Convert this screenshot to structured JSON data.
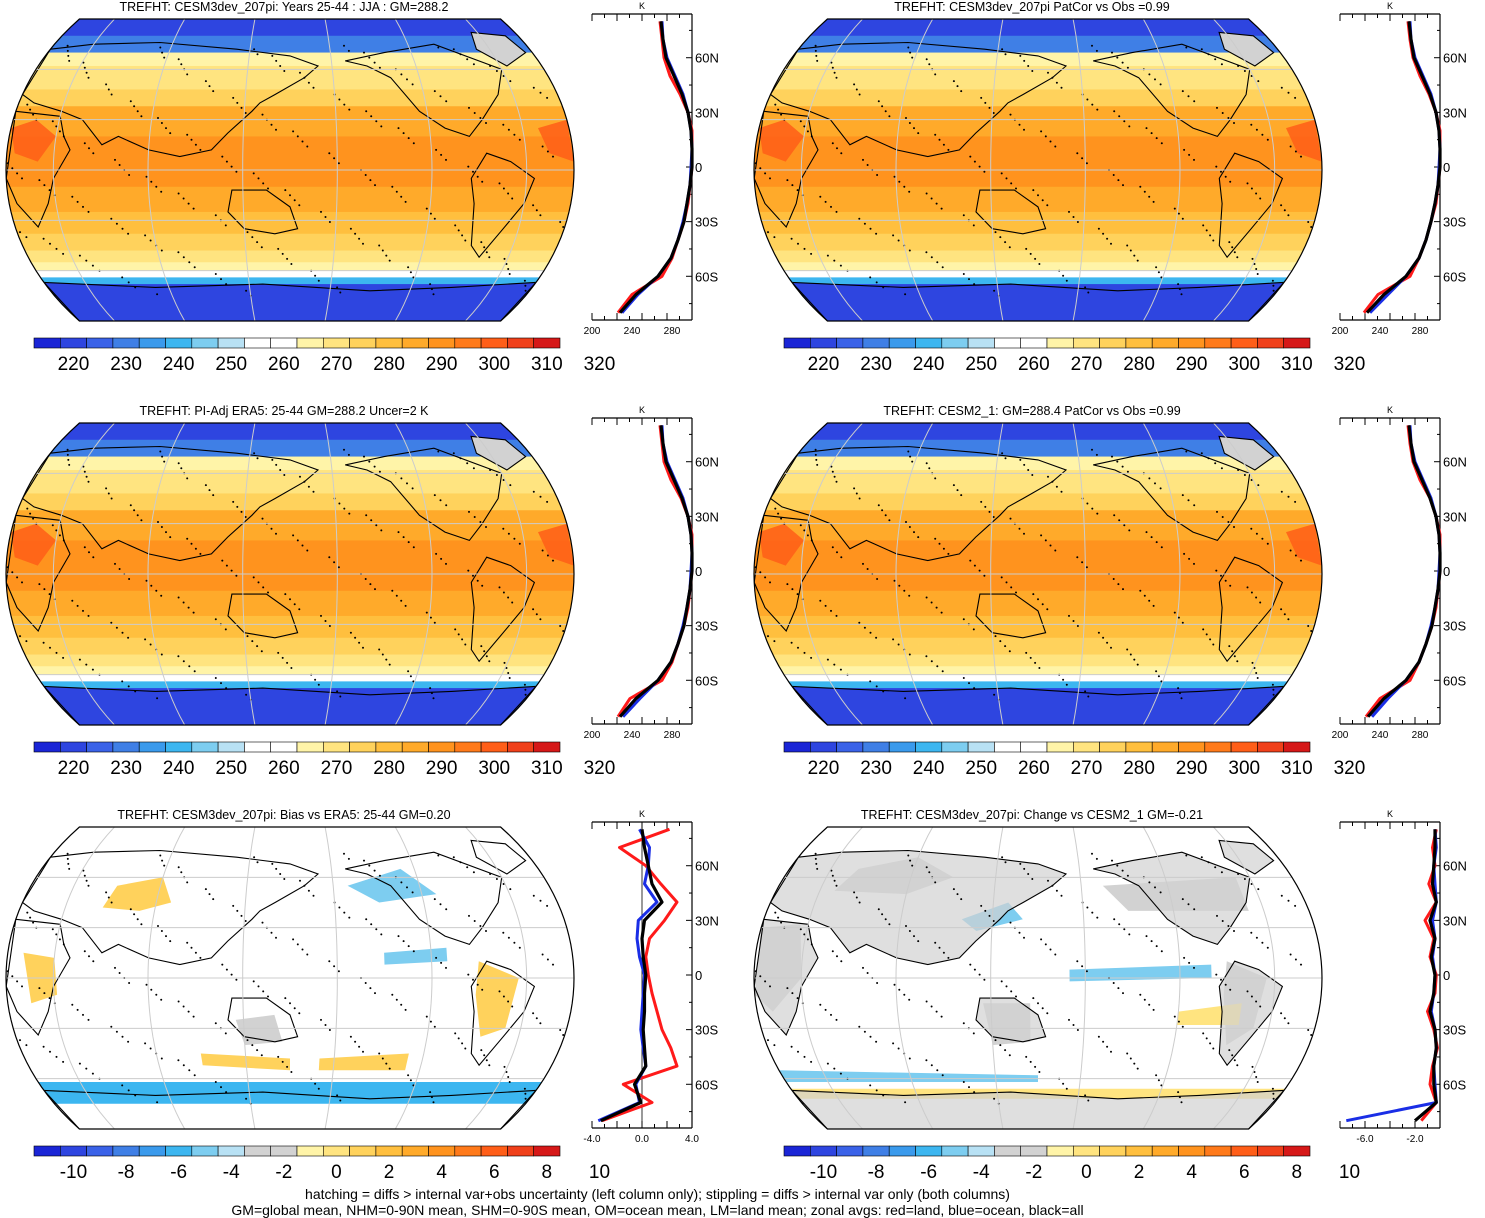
{
  "colors": {
    "abs_levels": [
      "#1a25d6",
      "#2e45e0",
      "#3a62e8",
      "#3f7fe6",
      "#3a9aec",
      "#3cb6f0",
      "#7dcdf0",
      "#b8e1f4",
      "#ffffff",
      "#ffffff",
      "#fff4a8",
      "#ffe480",
      "#ffd25c",
      "#ffbf3e",
      "#ffaa2a",
      "#ff931e",
      "#ff7a1a",
      "#ff5e18",
      "#f0401a",
      "#d61818"
    ],
    "diff_levels": [
      "#1a25d6",
      "#2e45e0",
      "#3a62e8",
      "#3f7fe6",
      "#3a9aec",
      "#3cb6f0",
      "#7dcdf0",
      "#b8e1f4",
      "#d2d2d2",
      "#d2d2d2",
      "#fff4a8",
      "#ffe480",
      "#ffd25c",
      "#ffbf3e",
      "#ffaa2a",
      "#ff931e",
      "#ff7a1a",
      "#ff5e18",
      "#f0401a",
      "#d61818"
    ],
    "land_line": "#ff1a1a",
    "ocean_line": "#1a2ee6",
    "all_line": "#000000",
    "grid": "#cccccc"
  },
  "colorbars": {
    "absolute": {
      "labels": [
        "220",
        "230",
        "240",
        "250",
        "260",
        "270",
        "280",
        "290",
        "300",
        "310",
        "320"
      ]
    },
    "difference": {
      "labels": [
        "-10",
        "-8",
        "-6",
        "-4",
        "-2",
        "0",
        "2",
        "4",
        "6",
        "8",
        "10"
      ]
    }
  },
  "panels": [
    {
      "title": "TREFHT: CESM3dev_207pi: Years 25-44 : JJA : GM=288.2",
      "kind": "absolute",
      "chart_data": {
        "type": "line",
        "title": "K",
        "xlim": [
          200,
          300
        ],
        "xtick_labels": [
          "200",
          "240",
          "280"
        ],
        "ytick_labels": [
          "60N",
          "30N",
          "0",
          "30S",
          "60S"
        ],
        "lat": [
          80,
          70,
          60,
          50,
          40,
          30,
          20,
          10,
          0,
          -10,
          -20,
          -30,
          -40,
          -50,
          -60,
          -70,
          -80
        ],
        "series": [
          {
            "values": [
              268,
              270,
              272,
              278,
              288,
              296,
              300,
              300,
              300,
              298,
              296,
              292,
              286,
              280,
              270,
              240,
              226
            ]
          },
          {
            "values": [
              270,
              271,
              275,
              283,
              291,
              296,
              299,
              300,
              299,
              298,
              295,
              291,
              286,
              279,
              266,
              246,
              230
            ]
          },
          {
            "values": [
              269,
              271,
              274,
              282,
              290,
              296,
              299,
              300,
              300,
              298,
              295,
              292,
              286,
              279,
              266,
              244,
              228
            ]
          }
        ]
      }
    },
    {
      "title": "TREFHT: CESM3dev_207pi PatCor vs Obs =0.99",
      "kind": "absolute",
      "chart_data": {
        "type": "line",
        "title": "K",
        "xlim": [
          200,
          300
        ],
        "xtick_labels": [
          "200",
          "240",
          "280"
        ],
        "ytick_labels": [
          "60N",
          "30N",
          "0",
          "30S",
          "60S"
        ],
        "lat": [
          80,
          70,
          60,
          50,
          40,
          30,
          20,
          10,
          0,
          -10,
          -20,
          -30,
          -40,
          -50,
          -60,
          -70,
          -80
        ],
        "series": [
          {
            "values": [
              268,
              270,
              273,
              280,
              289,
              296,
              300,
              300,
              300,
              298,
              296,
              291,
              286,
              279,
              270,
              238,
              224
            ]
          },
          {
            "values": [
              270,
              271,
              275,
              283,
              291,
              296,
              299,
              300,
              299,
              298,
              295,
              291,
              286,
              279,
              266,
              248,
              230
            ]
          },
          {
            "values": [
              269,
              271,
              274,
              282,
              290,
              296,
              299,
              300,
              300,
              298,
              295,
              291,
              286,
              279,
              266,
              244,
              227
            ]
          }
        ]
      }
    },
    {
      "title": "TREFHT: PI-Adj ERA5: 25-44 GM=288.2 Uncer=2 K",
      "kind": "absolute",
      "chart_data": {
        "type": "line",
        "title": "K",
        "xlim": [
          200,
          300
        ],
        "xtick_labels": [
          "200",
          "240",
          "280"
        ],
        "ytick_labels": [
          "60N",
          "30N",
          "0",
          "30S",
          "60S"
        ],
        "lat": [
          80,
          70,
          60,
          50,
          40,
          30,
          20,
          10,
          0,
          -10,
          -20,
          -30,
          -40,
          -50,
          -60,
          -70,
          -80
        ],
        "series": [
          {
            "values": [
              268,
              270,
              272,
              279,
              289,
              296,
              300,
              300,
              300,
              298,
              296,
              292,
              286,
              280,
              270,
              238,
              226
            ]
          },
          {
            "values": [
              270,
              271,
              275,
              283,
              291,
              296,
              299,
              300,
              299,
              298,
              295,
              291,
              286,
              279,
              266,
              248,
              231
            ]
          },
          {
            "values": [
              269,
              271,
              274,
              282,
              290,
              296,
              299,
              300,
              300,
              298,
              295,
              292,
              286,
              279,
              266,
              244,
              228
            ]
          }
        ]
      }
    },
    {
      "title": "TREFHT: CESM2_1: GM=288.4 PatCor vs Obs =0.99",
      "kind": "absolute",
      "chart_data": {
        "type": "line",
        "title": "K",
        "xlim": [
          200,
          300
        ],
        "xtick_labels": [
          "200",
          "240",
          "280"
        ],
        "ytick_labels": [
          "60N",
          "30N",
          "0",
          "30S",
          "60S"
        ],
        "lat": [
          80,
          70,
          60,
          50,
          40,
          30,
          20,
          10,
          0,
          -10,
          -20,
          -30,
          -40,
          -50,
          -60,
          -70,
          -80
        ],
        "series": [
          {
            "values": [
              268,
              270,
              273,
              280,
              290,
              296,
              300,
              300,
              300,
              298,
              296,
              292,
              286,
              279,
              270,
              240,
              226
            ]
          },
          {
            "values": [
              270,
              271,
              275,
              283,
              291,
              296,
              299,
              300,
              299,
              298,
              295,
              291,
              286,
              279,
              266,
              248,
              232
            ]
          },
          {
            "values": [
              269,
              271,
              274,
              282,
              290,
              296,
              299,
              300,
              300,
              298,
              295,
              292,
              286,
              279,
              266,
              244,
              228
            ]
          }
        ]
      }
    },
    {
      "title": "TREFHT: CESM3dev_207pi: Bias vs ERA5: 25-44 GM=0.20",
      "kind": "difference",
      "chart_data": {
        "type": "line",
        "title": "K",
        "xlim": [
          -4,
          4
        ],
        "xtick_labels": [
          "-4.0",
          "0.0",
          "4.0"
        ],
        "ytick_labels": [
          "60N",
          "30N",
          "0",
          "30S",
          "60S"
        ],
        "lat": [
          80,
          70,
          60,
          50,
          40,
          30,
          20,
          10,
          0,
          -10,
          -20,
          -30,
          -40,
          -50,
          -60,
          -70,
          -80
        ],
        "series": [
          {
            "values": [
              2.2,
              -1.8,
              0.3,
              1.5,
              2.8,
              1.8,
              0.6,
              0.3,
              0.5,
              0.8,
              1.2,
              1.6,
              2.3,
              2.8,
              -1.5,
              0.8,
              -3.2
            ]
          },
          {
            "values": [
              -0.2,
              0.6,
              0.5,
              0.2,
              1.2,
              -0.3,
              -0.4,
              -0.2,
              0.2,
              0.1,
              0.0,
              -0.1,
              0.1,
              0.3,
              -0.5,
              -0.2,
              -3.5
            ]
          },
          {
            "values": [
              0.0,
              0.2,
              0.5,
              0.8,
              1.6,
              0.2,
              0.0,
              0.1,
              0.3,
              0.2,
              0.2,
              0.1,
              0.2,
              0.3,
              -0.6,
              -0.1,
              -3.3
            ]
          }
        ]
      }
    },
    {
      "title": "TREFHT: CESM3dev_207pi: Change vs CESM2_1 GM=-0.21",
      "kind": "difference",
      "chart_data": {
        "type": "line",
        "title": "K",
        "xlim": [
          -8,
          0
        ],
        "xtick_labels": [
          "-6.0",
          "-2.0"
        ],
        "ytick_labels": [
          "60N",
          "30N",
          "0",
          "30S",
          "60S"
        ],
        "lat": [
          80,
          70,
          60,
          50,
          40,
          30,
          20,
          10,
          0,
          -10,
          -20,
          -30,
          -40,
          -50,
          -60,
          -70,
          -80
        ],
        "series": [
          {
            "values": [
              -0.3,
              -0.6,
              -0.4,
              -0.9,
              -0.3,
              -1.2,
              -0.5,
              -0.8,
              -0.3,
              -0.4,
              -1.0,
              -0.5,
              -0.2,
              -0.6,
              -0.8,
              -0.3,
              -1.5
            ]
          },
          {
            "values": [
              -0.4,
              -0.3,
              -0.5,
              -0.4,
              -0.3,
              -0.6,
              -0.4,
              -0.6,
              -0.4,
              -0.5,
              -0.7,
              -0.4,
              -0.3,
              -0.5,
              -0.4,
              -0.3,
              -7.5
            ]
          },
          {
            "values": [
              -0.4,
              -0.4,
              -0.5,
              -0.6,
              -0.3,
              -0.8,
              -0.4,
              -0.7,
              -0.4,
              -0.5,
              -0.8,
              -0.4,
              -0.3,
              -0.5,
              -0.5,
              -0.3,
              -2.0
            ]
          }
        ]
      }
    }
  ],
  "footnote": {
    "line1": "hatching = diffs > internal var+obs uncertainty (left column only); stippling = diffs > internal var only (both columns)",
    "line2": "GM=global mean, NHM=0-90N mean, SHM=0-90S mean, OM=ocean mean, LM=land mean; zonal avgs: red=land, blue=ocean, black=all"
  }
}
